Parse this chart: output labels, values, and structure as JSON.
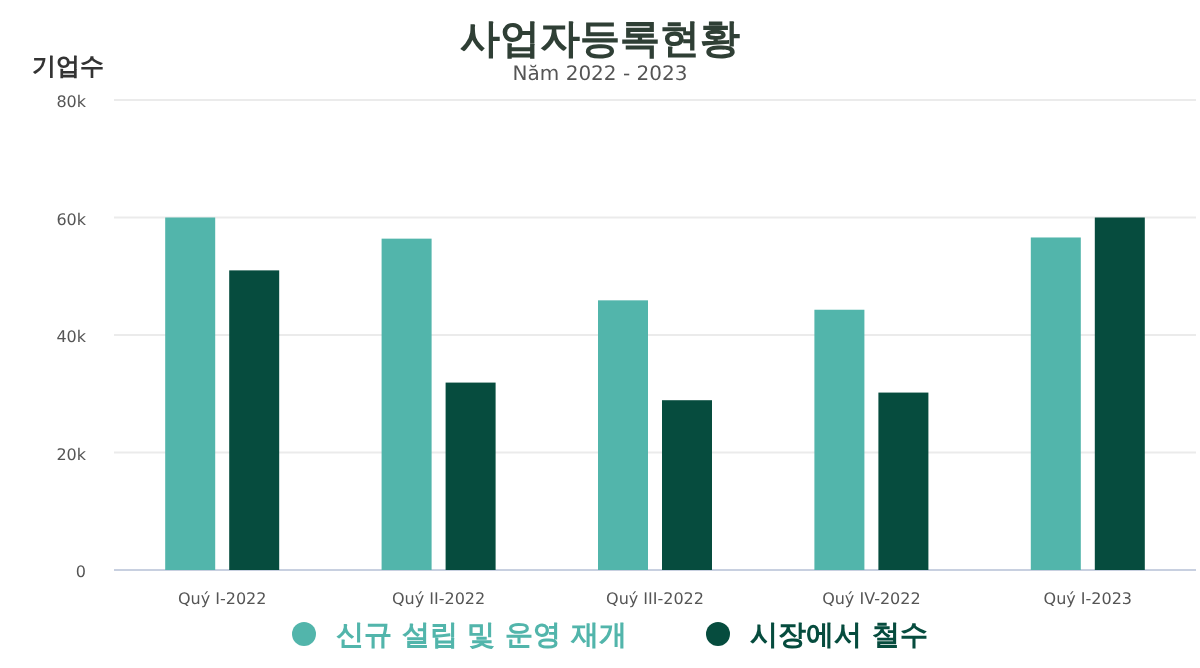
{
  "chart_data": {
    "type": "bar",
    "title": "사업자등록현황",
    "subtitle": "Năm 2022 - 2023",
    "ylabel": "기업수",
    "categories": [
      "Quý I-2022",
      "Quý II-2022",
      "Quý III-2022",
      "Quý IV-2022",
      "Quý I-2023"
    ],
    "series": [
      {
        "name": "신규 설립 및 운영 재개",
        "color": "#52b5ab",
        "values": [
          60000,
          56400,
          45900,
          44300,
          56600
        ]
      },
      {
        "name": "시장에서 철수",
        "color": "#064c3e",
        "values": [
          51000,
          31900,
          28900,
          30200,
          60000
        ]
      }
    ],
    "ylim": [
      0,
      80000
    ],
    "yticks": [
      {
        "value": 0,
        "label": "0"
      },
      {
        "value": 20000,
        "label": "20k"
      },
      {
        "value": 40000,
        "label": "40k"
      },
      {
        "value": 60000,
        "label": "60k"
      },
      {
        "value": 80000,
        "label": "80k"
      }
    ],
    "grid": "y",
    "legend": "bottom"
  }
}
